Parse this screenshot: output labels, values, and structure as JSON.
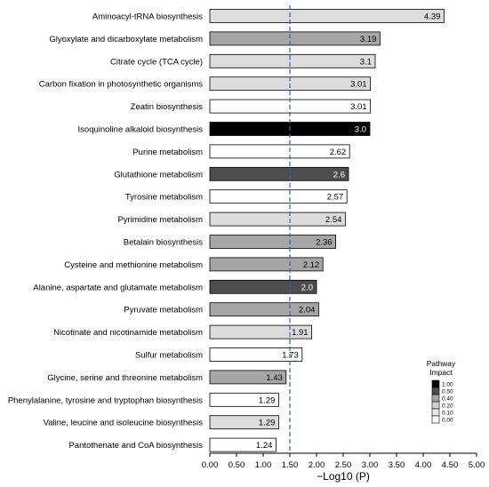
{
  "chart_data": {
    "type": "bar",
    "orientation": "horizontal",
    "xlabel": "−Log10 (P)",
    "xlim": [
      0,
      5
    ],
    "xticks": [
      0,
      0.5,
      1,
      1.5,
      2,
      2.5,
      3,
      3.5,
      4,
      4.5,
      5
    ],
    "xtick_labels": [
      "0.00",
      "0.50",
      "1.00",
      "1.50",
      "2.00",
      "2.50",
      "3.00",
      "3.50",
      "4.00",
      "4.50",
      "5.00"
    ],
    "threshold_line": {
      "value": 1.5,
      "color": "#2b5fd0",
      "style": "dashed"
    },
    "grid": false,
    "categories": [
      "Aminoacyl-tRNA biosynthesis",
      "Glyoxylate and dicarboxylate metabolism",
      "Citrate cycle (TCA cycle)",
      "Carbon fixation in photosynthetic organisms",
      "Zeatin biosynthesis",
      "Isoquinoline alkaloid biosynthesis",
      "Purine metabolism",
      "Glutathione metabolism",
      "Tyrosine metabolism",
      "Pyrimidine metabolism",
      "Betalain biosynthesis",
      "Cysteine and methionine metabolism",
      "Alanine, aspartate and glutamate metabolism",
      "Pyruvate metabolism",
      "Nicotinate and nicotinamide metabolism",
      "Sulfur metabolism",
      "Glycine, serine and threonine metabolism",
      "Phenylalanine, tyrosine and tryptophan biosynthesis",
      "Valine, leucine and isoleucine biosynthesis",
      "Pantothenate and CoA biosynthesis"
    ],
    "values": [
      4.39,
      3.19,
      3.1,
      3.01,
      3.01,
      3.0,
      2.62,
      2.6,
      2.57,
      2.54,
      2.36,
      2.12,
      2.0,
      2.04,
      1.91,
      1.73,
      1.43,
      1.29,
      1.29,
      1.24
    ],
    "value_labels": [
      "4.39",
      "3.19",
      "3.1",
      "3.01",
      "3.01",
      "3.0",
      "2.62",
      "2.6",
      "2.57",
      "2.54",
      "2.36",
      "2.12",
      "2.0",
      "2.04",
      "1.91",
      "1.73",
      "1.43",
      "1.29",
      "1.29",
      "1.24"
    ],
    "bar_colors": [
      "#dcdcdc",
      "#a6a6a6",
      "#dcdcdc",
      "#dcdcdc",
      "#ffffff",
      "#000000",
      "#ffffff",
      "#4d4d4d",
      "#ffffff",
      "#dcdcdc",
      "#a6a6a6",
      "#a6a6a6",
      "#4d4d4d",
      "#a6a6a6",
      "#dcdcdc",
      "#ffffff",
      "#a6a6a6",
      "#ffffff",
      "#dcdcdc",
      "#ffffff"
    ],
    "label_colors": [
      "#000000",
      "#000000",
      "#000000",
      "#000000",
      "#000000",
      "#ffffff",
      "#000000",
      "#ffffff",
      "#000000",
      "#000000",
      "#000000",
      "#000000",
      "#ffffff",
      "#000000",
      "#000000",
      "#000000",
      "#000000",
      "#000000",
      "#000000",
      "#000000"
    ],
    "legend": {
      "title_lines": [
        "Pathway",
        "Impact"
      ],
      "placement": "right",
      "entries": [
        {
          "label": "1.00",
          "color": "#000000"
        },
        {
          "label": "0.50",
          "color": "#4d4d4d"
        },
        {
          "label": "0.40",
          "color": "#a6a6a6"
        },
        {
          "label": "0.20",
          "color": "#cfcfcf"
        },
        {
          "label": "0.10",
          "color": "#e8e8e8"
        },
        {
          "label": "0.00",
          "color": "#ffffff"
        }
      ]
    }
  }
}
